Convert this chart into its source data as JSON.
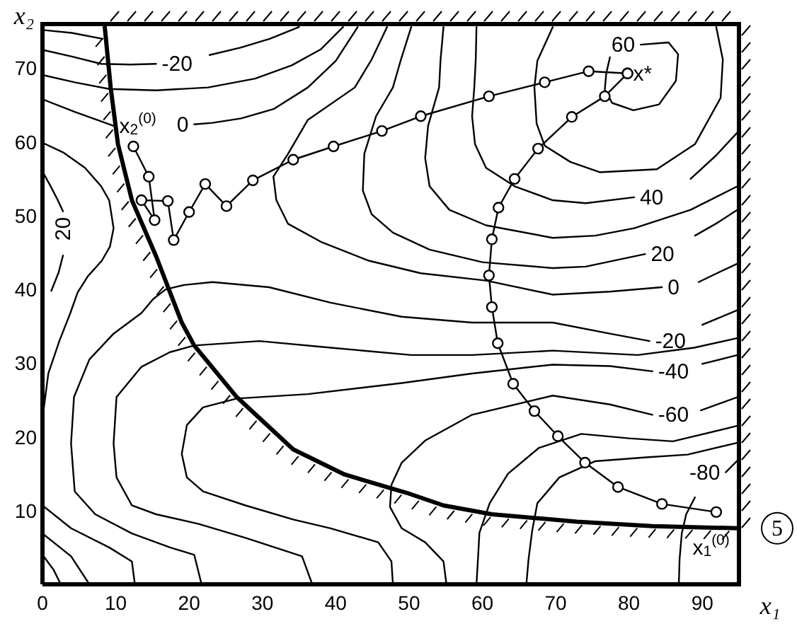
{
  "chart_data": {
    "type": "line",
    "xlabel": "x₁",
    "ylabel": "x₂",
    "xlim": [
      0,
      95
    ],
    "ylim": [
      0,
      76
    ],
    "xticks": [
      0,
      10,
      20,
      30,
      40,
      50,
      60,
      70,
      80,
      90
    ],
    "yticks": [
      10,
      20,
      30,
      40,
      50,
      60,
      70
    ],
    "series": [
      {
        "color": "#000000",
        "x": [
          8.5,
          9.3,
          10.3,
          12.2,
          15.5,
          19,
          20.7,
          26.5,
          34.2,
          41.2,
          49.7,
          54.7,
          61.3,
          72.9,
          83.2,
          95
        ],
        "values": [
          75.6,
          67.4,
          59.7,
          52.1,
          44.5,
          35.5,
          32.4,
          25.4,
          18.3,
          14.9,
          12.4,
          10.7,
          9.5,
          8.5,
          7.9,
          7.6
        ]
      },
      {
        "color": "#000000",
        "marker": "circle",
        "x": [
          12.4,
          14.5,
          15.3,
          13.5,
          17.1,
          17.9,
          20.0,
          22.2,
          25.1,
          28.7,
          34.2,
          39.7,
          46.3,
          51.6,
          60.9,
          68.5,
          74.5,
          79.8
        ],
        "values": [
          59.4,
          55.3,
          49.4,
          52.1,
          52.0,
          46.7,
          50.5,
          54.3,
          51.3,
          54.8,
          57.6,
          59.4,
          61.5,
          63.5,
          66.2,
          68.1,
          69.6,
          69.3
        ]
      },
      {
        "color": "#000000",
        "marker": "circle",
        "x": [
          91.9,
          84.5,
          78.5,
          74.0,
          70.3,
          67.1,
          64.2,
          62.1,
          61.3,
          60.9,
          61.3,
          62.2,
          64.4,
          67.6,
          72.2,
          76.7,
          79.8
        ],
        "values": [
          9.8,
          10.9,
          13.2,
          16.5,
          20.1,
          23.5,
          27.2,
          32.7,
          37.6,
          41.9,
          46.8,
          51.1,
          55.0,
          59.1,
          63.4,
          66.2,
          69.3
        ]
      },
      {
        "color": "#000000",
        "x": [
          0,
          4,
          8.2
        ],
        "values": [
          75.2,
          74.8,
          74.0
        ]
      },
      {
        "color": "#000000",
        "x": [
          0,
          4,
          8,
          12,
          15.5,
          19.2,
          22.8,
          27,
          31,
          35
        ],
        "values": [
          72.5,
          71.6,
          70.6,
          70.5,
          70.6,
          null,
          71.8,
          72.8,
          74,
          75.6
        ]
      },
      {
        "color": "#000000",
        "x": [
          0,
          4.4,
          9.1,
          15.5,
          22.6,
          29,
          34,
          38,
          41
        ],
        "values": [
          69.1,
          68.1,
          67.2,
          67,
          67.4,
          68.6,
          70.4,
          72.6,
          75.6
        ]
      },
      {
        "color": "#000000",
        "x": [
          0,
          4.4,
          9.7,
          15.2,
          20.7,
          23.2,
          27.1,
          31.6,
          36.2,
          40,
          43
        ],
        "values": [
          65.8,
          64.1,
          62.2,
          null,
          62.4,
          62.6,
          63.2,
          64.5,
          67.4,
          71,
          75.6
        ]
      },
      {
        "color": "#000000",
        "x": [
          47,
          44.9,
          42.6,
          36.2,
          33.5,
          31.5,
          31.9,
          33.5,
          38.1,
          44.5,
          51.6,
          60.5,
          69.6,
          77.4,
          84.5,
          87,
          89.5,
          92,
          94.8
        ],
        "values": [
          75.6,
          71.2,
          67.4,
          63,
          58.4,
          55.3,
          52.1,
          48.9,
          46.4,
          43.9,
          42.2,
          41.2,
          39.3,
          39.7,
          40.3,
          null,
          41,
          42.2,
          43.5
        ]
      },
      {
        "color": "#000000",
        "x": [
          50.3,
          48.9,
          47.8,
          45.5,
          43.9,
          43.7,
          44.9,
          47.8,
          52.8,
          60,
          69.6,
          74.1,
          82.2,
          85.6,
          89,
          92,
          94.8
        ],
        "values": [
          75.6,
          71.2,
          67.4,
          63.5,
          58.4,
          53.4,
          50.2,
          47.7,
          45.4,
          43.7,
          42.9,
          43.1,
          44.8,
          null,
          47.3,
          49,
          50.8
        ]
      },
      {
        "color": "#000000",
        "x": [
          54.7,
          54.3,
          54.1,
          52.6,
          52.2,
          52.8,
          55.5,
          60.5,
          69.6,
          75.4,
          80.7,
          88.4,
          94.8
        ],
        "values": [
          75.6,
          71.2,
          67.4,
          62.2,
          57.8,
          54,
          50.8,
          48.7,
          47,
          47.3,
          48.3,
          50.8,
          54
        ]
      },
      {
        "color": "#000000",
        "x": [
          59.2,
          59.1,
          58.9,
          58.6,
          59,
          60.5,
          64.4,
          69.6,
          74.1,
          80.7,
          84.5,
          88.4,
          91.9,
          94.8
        ],
        "values": [
          75.6,
          71.2,
          67.4,
          63.5,
          59.7,
          56.5,
          54,
          52.1,
          51.7,
          52.5,
          null,
          55,
          58.2,
          61.3
        ]
      },
      {
        "color": "#000000",
        "x": [
          69.6,
          67.5,
          67.1,
          67.4,
          68.5,
          72,
          76,
          83.8,
          89,
          92.5,
          92.8,
          91.9
        ],
        "values": [
          75.6,
          71,
          67.4,
          62.5,
          59.5,
          57.3,
          55.9,
          56.3,
          59.7,
          66,
          71.2,
          75.6
        ]
      },
      {
        "color": "#000000",
        "x": [
          81.6,
          85.4,
          86.7,
          86.4,
          84.1,
          80.6,
          77.7,
          76.7,
          76.9,
          77.4
        ],
        "values": [
          73.2,
          73.5,
          71.9,
          68.3,
          65.1,
          64.3,
          65.3,
          67.1,
          69.3,
          71.5
        ]
      },
      {
        "color": "#000000",
        "x": [
          0,
          2.8,
          5.8,
          8,
          9.1,
          9.7,
          9.2,
          8.1,
          6.2,
          4.8,
          3.8,
          2.3,
          0.8,
          0.2,
          0
        ],
        "values": [
          59.9,
          58.6,
          56.5,
          54,
          52.1,
          48.3,
          45.8,
          43.9,
          41.8,
          39.6,
          36.8,
          33,
          28.6,
          24,
          21
        ]
      },
      {
        "color": "#000000",
        "x": [
          21.7,
          20.7,
          17.4,
          12.2,
          7.2,
          4.4,
          3.9,
          4.3,
          6.4,
          9.7,
          13.5,
          15.1,
          16.8,
          19.3,
          23.2,
          30.9,
          39.3,
          49,
          58.6,
          69.6,
          77.4,
          82.8,
          86.4,
          90,
          94.8
        ],
        "values": [
          0,
          4,
          5,
          6.9,
          9.5,
          12.6,
          19.1,
          25.4,
          30.5,
          34,
          36.8,
          38.7,
          40,
          40.6,
          41,
          40.3,
          38.2,
          36.3,
          35.5,
          35.5,
          34,
          33,
          null,
          35.2,
          37.2
        ]
      },
      {
        "color": "#000000",
        "x": [
          36.8,
          35.4,
          27.7,
          21.3,
          15.5,
          12.2,
          10.1,
          9.7,
          10.1,
          13.5,
          17.4,
          20.7,
          29.6,
          39.3,
          50.3,
          58.6,
          69.6,
          81.2,
          88.9,
          94.8
        ],
        "values": [
          0,
          3.8,
          6.3,
          8.2,
          9.5,
          10.7,
          14.5,
          19.1,
          25.4,
          29.5,
          31.5,
          32.4,
          33,
          32.1,
          31.1,
          31.1,
          31.7,
          31.1,
          32.1,
          33.4
        ]
      },
      {
        "color": "#000000",
        "x": [
          47.8,
          47.6,
          45.8,
          39.3,
          34.2,
          27.7,
          21.9,
          19.7,
          19,
          19.7,
          21.9,
          26.5,
          36.2,
          49,
          58.6,
          69.6,
          77.4,
          83.2,
          86.6,
          90,
          94.8
        ],
        "values": [
          0,
          3.1,
          5.7,
          7.6,
          8.8,
          10.7,
          12.6,
          14.5,
          17.7,
          21.6,
          24,
          25.2,
          25.8,
          27.3,
          28.6,
          29.8,
          29.6,
          28.9,
          null,
          29.9,
          31.1
        ]
      },
      {
        "color": "#000000",
        "x": [
          55.1,
          54.7,
          52.2,
          49,
          47.4,
          47.6,
          49,
          52.2,
          58.6,
          69.6,
          77.4,
          83.2,
          86.5,
          89.8,
          94.8
        ],
        "values": [
          0,
          3.1,
          5.7,
          7.6,
          10.5,
          13.5,
          16.5,
          19.5,
          23,
          25.6,
          24.4,
          23,
          null,
          23.6,
          25.4
        ]
      },
      {
        "color": "#000000",
        "x": [
          59.2,
          59.4,
          59.6,
          61,
          63.5,
          67.7,
          73.5,
          80,
          86,
          94.8
        ],
        "values": [
          0,
          3.4,
          7,
          11,
          15,
          18.5,
          20.4,
          19.8,
          19.4,
          21.5
        ]
      },
      {
        "color": "#000000",
        "x": [
          66,
          66.3,
          66.8,
          67.5,
          70.5,
          75.4,
          82,
          88,
          94.8
        ],
        "values": [
          0,
          3.4,
          7.3,
          11,
          14.5,
          16.7,
          17.2,
          17.6,
          19.2
        ]
      },
      {
        "color": "#000000",
        "x": [
          86.8,
          86.9,
          87.2,
          87.8,
          89,
          91,
          93.2,
          95
        ],
        "values": [
          0,
          3.4,
          6.9,
          9.5,
          11.8,
          null,
          15.2,
          17.0
        ]
      },
      {
        "color": "#000000",
        "x": [
          0,
          1.5,
          2.5
        ],
        "values": [
          4,
          2,
          0
        ]
      },
      {
        "color": "#000000",
        "x": [
          0,
          3.9,
          6.4
        ],
        "values": [
          6.9,
          3.8,
          0
        ]
      },
      {
        "color": "#000000",
        "x": [
          0,
          3.9,
          9.1,
          12.2,
          12.6
        ],
        "values": [
          10.7,
          7.6,
          5,
          3.1,
          0
        ]
      },
      {
        "color": "#000000",
        "x": [
          0,
          1,
          2,
          2.8
        ],
        "values": [
          56,
          54.2,
          52.3,
          50.6
        ]
      },
      {
        "color": "#000000",
        "x": [
          2.8,
          2.2,
          1.2
        ],
        "values": [
          44.6,
          42.3,
          39.8
        ]
      }
    ],
    "annotations": [
      {
        "text": "-20",
        "x": 15.5,
        "y": 70.6
      },
      {
        "text": "x$_{2}$$^{(0)}$",
        "x": 9.7,
        "y": 62.2
      },
      {
        "text": "0",
        "x": 20.7,
        "y": 62.4
      },
      {
        "text": "20",
        "x": 2.8,
        "y": 50.6
      },
      {
        "text": "60",
        "x": 81.6,
        "y": 73.2
      },
      {
        "text": "x*",
        "x": 79.8,
        "y": 69.3
      },
      {
        "text": "40",
        "x": 80.7,
        "y": 52.5
      },
      {
        "text": "20",
        "x": 82.2,
        "y": 44.8
      },
      {
        "text": "0",
        "x": 84.5,
        "y": 40.3
      },
      {
        "text": "-20",
        "x": 82.8,
        "y": 33
      },
      {
        "text": "-40",
        "x": 83.2,
        "y": 28.9
      },
      {
        "text": "-60",
        "x": 83.2,
        "y": 23
      },
      {
        "text": "-80",
        "x": 93.2,
        "y": 15.2
      },
      {
        "text": "x$_{1}$$^{(0)}$",
        "x": 91.2,
        "y": 7.7
      },
      "5"
    ]
  }
}
